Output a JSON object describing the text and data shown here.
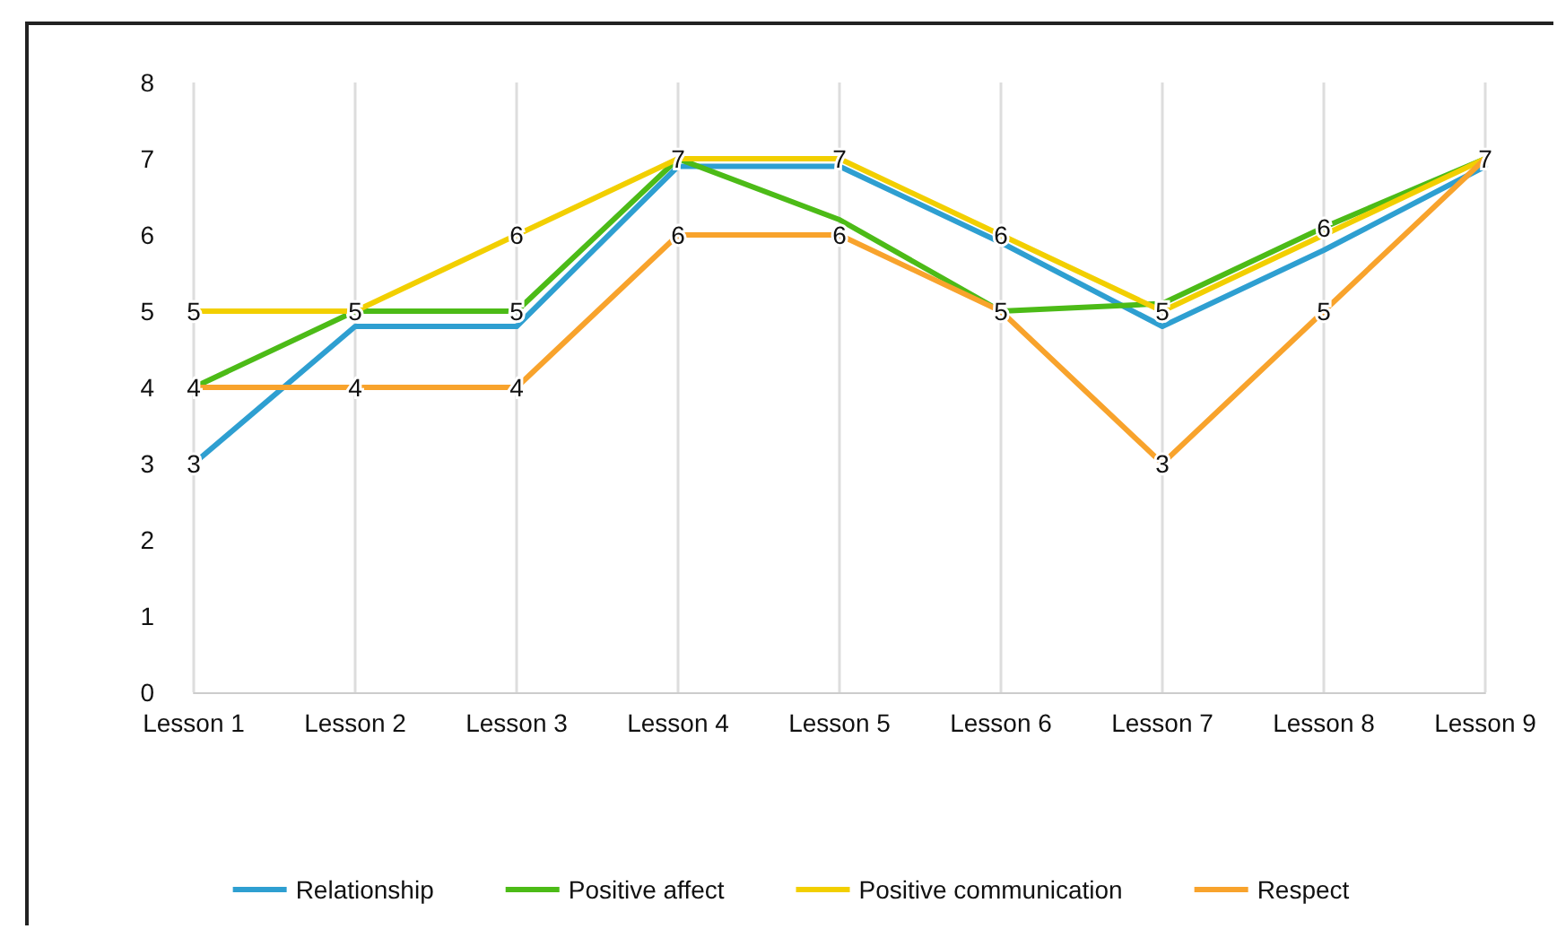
{
  "chart_data": {
    "type": "line",
    "categories": [
      "Lesson 1",
      "Lesson 2",
      "Lesson 3",
      "Lesson 4",
      "Lesson 5",
      "Lesson 6",
      "Lesson 7",
      "Lesson 8",
      "Lesson 9"
    ],
    "series": [
      {
        "name": "Relationship",
        "color": "#2e9fd1",
        "values": [
          3,
          4.8,
          4.8,
          6.9,
          6.9,
          5.9,
          4.8,
          5.8,
          6.9
        ],
        "value_labels": [
          "3",
          null,
          null,
          null,
          null,
          null,
          null,
          null,
          null
        ]
      },
      {
        "name": "Positive affect",
        "color": "#4cbb17",
        "values": [
          4,
          5,
          5,
          7,
          6.2,
          5,
          5.1,
          6.1,
          7
        ],
        "value_labels": [
          null,
          null,
          "5",
          null,
          null,
          null,
          null,
          "6",
          null
        ]
      },
      {
        "name": "Positive communication",
        "color": "#f2cf00",
        "values": [
          5,
          5,
          6,
          7,
          7,
          6,
          5,
          6,
          7
        ],
        "value_labels": [
          "5",
          "5",
          "6",
          "7",
          "7",
          "6",
          "5",
          null,
          "7"
        ]
      },
      {
        "name": "Respect",
        "color": "#f8a32c",
        "values": [
          4,
          4,
          4,
          6,
          6,
          5,
          3,
          5,
          7
        ],
        "value_labels": [
          "4",
          "4",
          "4",
          "6",
          "6",
          "5",
          "3",
          "5",
          null
        ]
      }
    ],
    "ylim": [
      0,
      8
    ],
    "yticks": [
      0,
      1,
      2,
      3,
      4,
      5,
      6,
      7,
      8
    ],
    "grid": "x",
    "legend": "bottom",
    "marker": "none",
    "line_style": "solid"
  }
}
